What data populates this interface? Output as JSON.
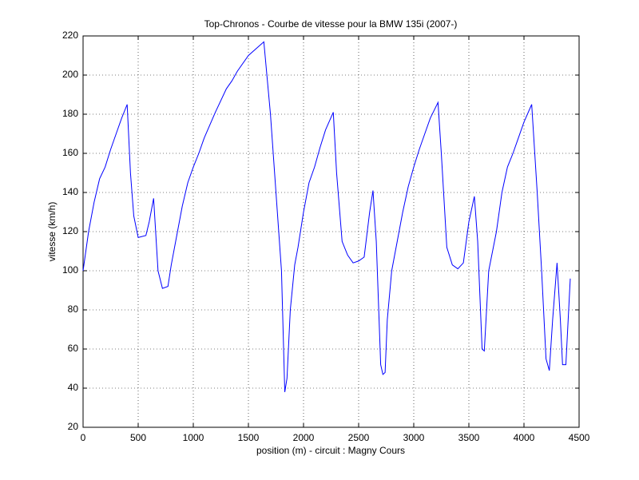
{
  "chart_data": {
    "type": "line",
    "title": "Top-Chronos - Courbe de vitesse pour la BMW 135i (2007-)",
    "x_label": "position (m) - circuit : Magny Cours",
    "y_label": "vitesse (km/h)",
    "xlim": [
      0,
      4500
    ],
    "xticks": [
      0,
      500,
      1000,
      1500,
      2000,
      2500,
      3000,
      3500,
      4000,
      4500
    ],
    "ylim": [
      20,
      220
    ],
    "yticks": [
      20,
      40,
      60,
      80,
      100,
      120,
      140,
      160,
      180,
      200,
      220
    ],
    "grid": true,
    "series": [
      {
        "color": "#0000ff",
        "x": [
          0,
          50,
          100,
          150,
          200,
          250,
          300,
          350,
          400,
          430,
          460,
          500,
          570,
          600,
          640,
          680,
          720,
          770,
          800,
          850,
          900,
          950,
          1000,
          1050,
          1100,
          1200,
          1300,
          1350,
          1400,
          1500,
          1600,
          1640,
          1700,
          1750,
          1800,
          1830,
          1850,
          1880,
          1920,
          1950,
          2000,
          2050,
          2100,
          2150,
          2200,
          2270,
          2300,
          2350,
          2400,
          2450,
          2500,
          2550,
          2600,
          2630,
          2660,
          2700,
          2720,
          2740,
          2760,
          2800,
          2850,
          2900,
          2950,
          3000,
          3050,
          3100,
          3150,
          3220,
          3250,
          3300,
          3350,
          3400,
          3450,
          3500,
          3550,
          3580,
          3620,
          3640,
          3680,
          3750,
          3800,
          3850,
          3900,
          3950,
          4000,
          4070,
          4120,
          4160,
          4200,
          4230,
          4260,
          4300,
          4330,
          4350,
          4380,
          4420
        ],
        "values": [
          100,
          120,
          135,
          147,
          153,
          162,
          170,
          178,
          185,
          150,
          128,
          117,
          118,
          125,
          137,
          100,
          91,
          92,
          103,
          118,
          133,
          145,
          153,
          160,
          168,
          181,
          193,
          197,
          202,
          210,
          215,
          217,
          180,
          140,
          100,
          38,
          45,
          80,
          103,
          112,
          130,
          145,
          153,
          163,
          172,
          181,
          150,
          115,
          108,
          104,
          105,
          107,
          130,
          141,
          115,
          52,
          47,
          48,
          75,
          100,
          115,
          130,
          143,
          153,
          162,
          170,
          178,
          186,
          160,
          112,
          103,
          101,
          104,
          125,
          138,
          115,
          60,
          59,
          100,
          120,
          140,
          153,
          160,
          168,
          176,
          185,
          140,
          100,
          55,
          49,
          75,
          104,
          75,
          52,
          52,
          96
        ]
      }
    ]
  }
}
